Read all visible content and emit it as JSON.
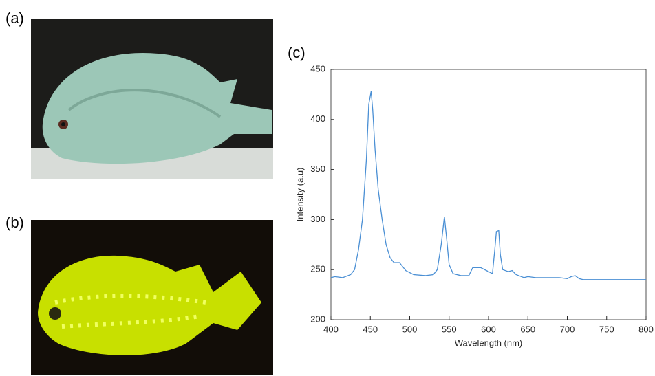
{
  "panel_labels": [
    "(a)",
    "(b)",
    "(c)"
  ],
  "chart_data": {
    "type": "line",
    "x_label": "Wavelength (nm)",
    "y_label": "Intensity (a.u)",
    "x": [
      400,
      405,
      415,
      425,
      430,
      435,
      440,
      445,
      448,
      451,
      453,
      456,
      460,
      465,
      470,
      475,
      480,
      487,
      495,
      505,
      520,
      530,
      535,
      540,
      544,
      547,
      550,
      555,
      565,
      575,
      580,
      590,
      600,
      605,
      608,
      610,
      613,
      615,
      618,
      625,
      630,
      635,
      645,
      650,
      660,
      690,
      700,
      705,
      710,
      715,
      720,
      800
    ],
    "series": [
      {
        "color": "#4a8fd4",
        "values": [
          242,
          243,
          242,
          245,
          250,
          270,
          300,
          360,
          415,
          428,
          410,
          370,
          330,
          300,
          275,
          262,
          257,
          257,
          249,
          245,
          244,
          245,
          250,
          275,
          303,
          280,
          255,
          246,
          244,
          244,
          252,
          252,
          248,
          246,
          270,
          288,
          289,
          265,
          250,
          248,
          249,
          245,
          242,
          243,
          242,
          242,
          241,
          243,
          244,
          241,
          240,
          240
        ]
      }
    ],
    "xlim": [
      400,
      800
    ],
    "ylim": [
      200,
      450
    ],
    "xticks": [
      400,
      450,
      500,
      550,
      600,
      650,
      700,
      750,
      800
    ],
    "yticks": [
      200,
      250,
      300,
      350,
      400,
      450
    ]
  }
}
